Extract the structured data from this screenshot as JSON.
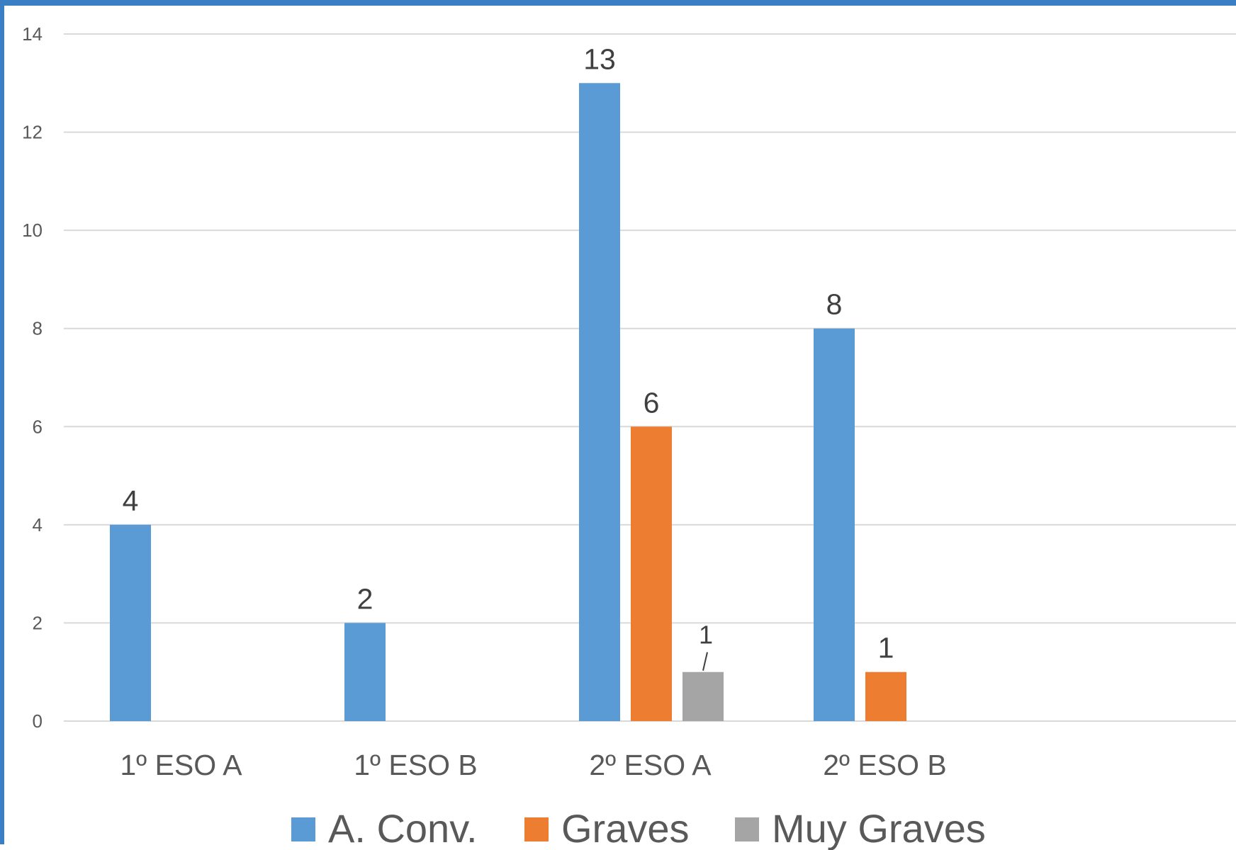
{
  "chart_data": {
    "type": "bar",
    "categories": [
      "1º ESO A",
      "1º ESO B",
      "2º ESO A",
      "2º ESO B",
      ""
    ],
    "series": [
      {
        "name": "A. Conv.",
        "color": "#5b9bd5",
        "values": [
          4,
          2,
          13,
          8,
          null
        ]
      },
      {
        "name": "Graves",
        "color": "#ed7d31",
        "values": [
          null,
          null,
          6,
          1,
          null
        ]
      },
      {
        "name": "Muy Graves",
        "color": "#a5a5a5",
        "values": [
          null,
          null,
          1,
          null,
          null
        ]
      }
    ],
    "yticks": [
      "0",
      "2",
      "4",
      "6",
      "8",
      "10",
      "12",
      "14"
    ],
    "ylim": [
      0,
      14
    ],
    "grid": true,
    "legend_position": "bottom",
    "data_labels": true
  }
}
